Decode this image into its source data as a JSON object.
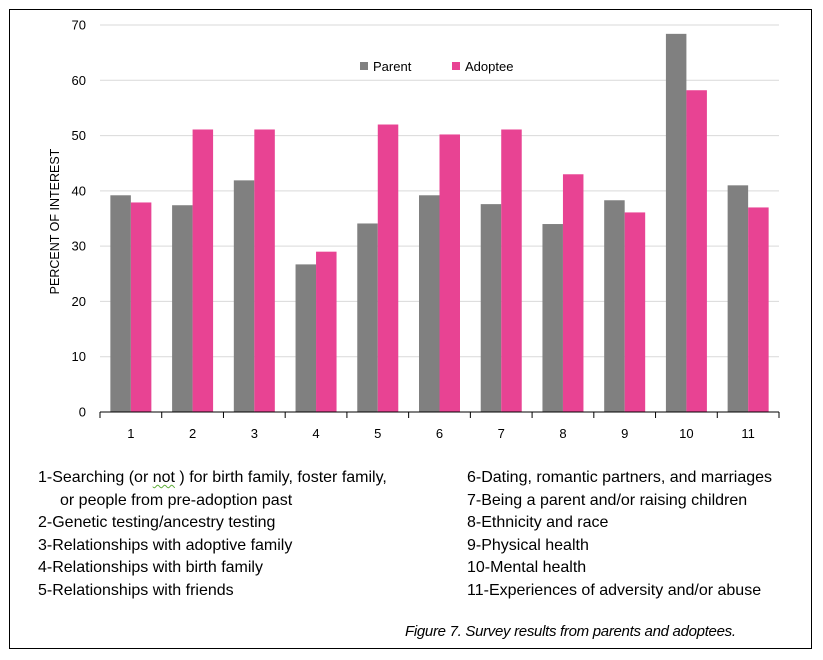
{
  "chart_data": {
    "type": "bar",
    "title": "",
    "xlabel": "",
    "ylabel": "PERCENT OF INTEREST",
    "ylim": [
      0,
      70
    ],
    "yticks": [
      0,
      10,
      20,
      30,
      40,
      50,
      60,
      70
    ],
    "grid": true,
    "legend_position": "top-center",
    "categories": [
      "1",
      "2",
      "3",
      "4",
      "5",
      "6",
      "7",
      "8",
      "9",
      "10",
      "11"
    ],
    "series": [
      {
        "name": "Parent",
        "color": "#808080",
        "values": [
          39.2,
          37.4,
          41.9,
          26.7,
          34.1,
          39.2,
          37.6,
          34.0,
          38.3,
          68.4,
          41.0
        ]
      },
      {
        "name": "Adoptee",
        "color": "#e84393",
        "values": [
          37.9,
          51.1,
          51.1,
          29.0,
          52.0,
          50.2,
          51.1,
          43.0,
          36.1,
          58.2,
          37.0
        ]
      }
    ]
  },
  "notes_left": [
    {
      "before": "1-Searching (or ",
      "squiggle": "not",
      "after": " ) for birth family, foster family,"
    },
    {
      "text": "or people from pre-adoption past",
      "indent": true
    },
    {
      "text": "2-Genetic testing/ancestry testing"
    },
    {
      "text": "3-Relationships with adoptive family"
    },
    {
      "text": "4-Relationships with birth family"
    },
    {
      "text": "5-Relationships with friends"
    }
  ],
  "notes_right": [
    {
      "text": "6-Dating, romantic partners, and marriages"
    },
    {
      "text": "7-Being a parent and/or raising children"
    },
    {
      "text": "8-Ethnicity and race"
    },
    {
      "text": "9-Physical health"
    },
    {
      "text": "10-Mental health"
    },
    {
      "text": "11-Experiences of adversity and/or abuse"
    }
  ],
  "caption": "Figure 7. Survey results from parents and adoptees."
}
